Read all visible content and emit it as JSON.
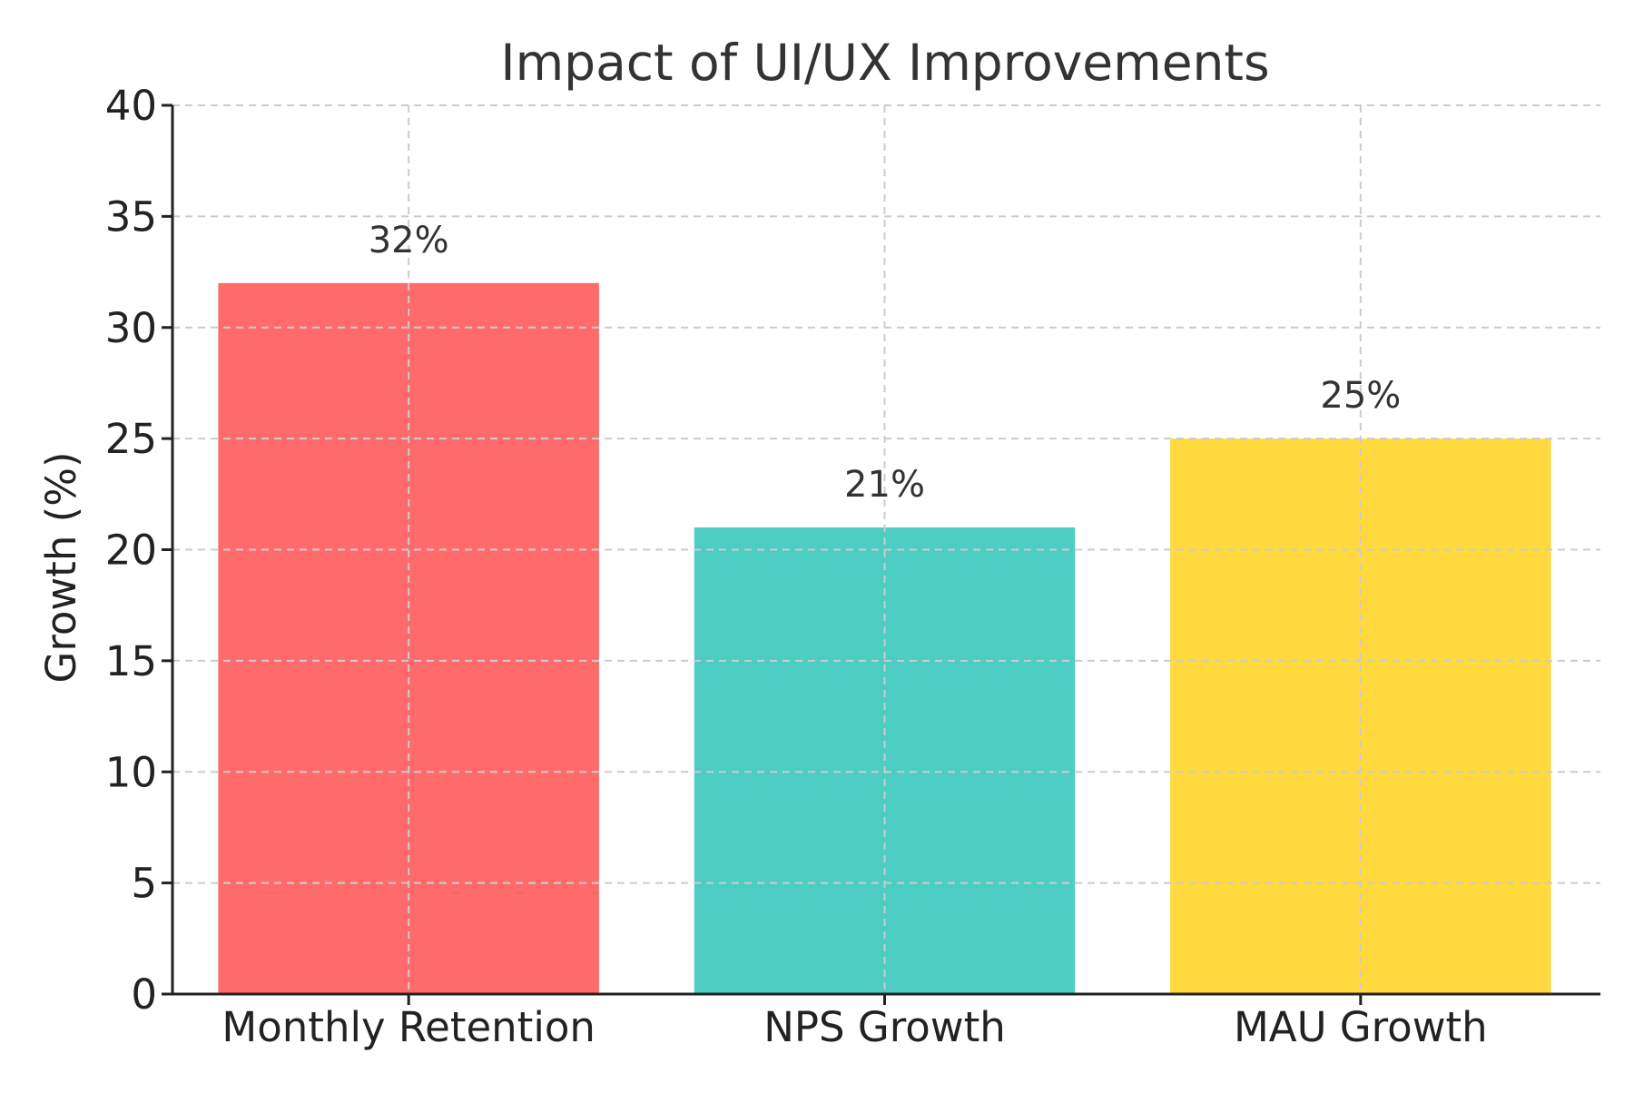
{
  "chart_data": {
    "type": "bar",
    "title": "Impact of UI/UX Improvements",
    "xlabel": "",
    "ylabel": "Growth (%)",
    "categories": [
      "Monthly Retention",
      "NPS Growth",
      "MAU Growth"
    ],
    "values": [
      32,
      21,
      25
    ],
    "data_labels": [
      "32%",
      "21%",
      "25%"
    ],
    "colors": [
      "#ff6b6b",
      "#4ecdc4",
      "#ffd93d"
    ],
    "ylim": [
      0,
      40
    ],
    "yticks": [
      0,
      5,
      10,
      15,
      20,
      25,
      30,
      35,
      40
    ],
    "ytick_labels": [
      "0",
      "5",
      "10",
      "15",
      "20",
      "25",
      "30",
      "35",
      "40"
    ],
    "grid": true,
    "legend": "none"
  }
}
